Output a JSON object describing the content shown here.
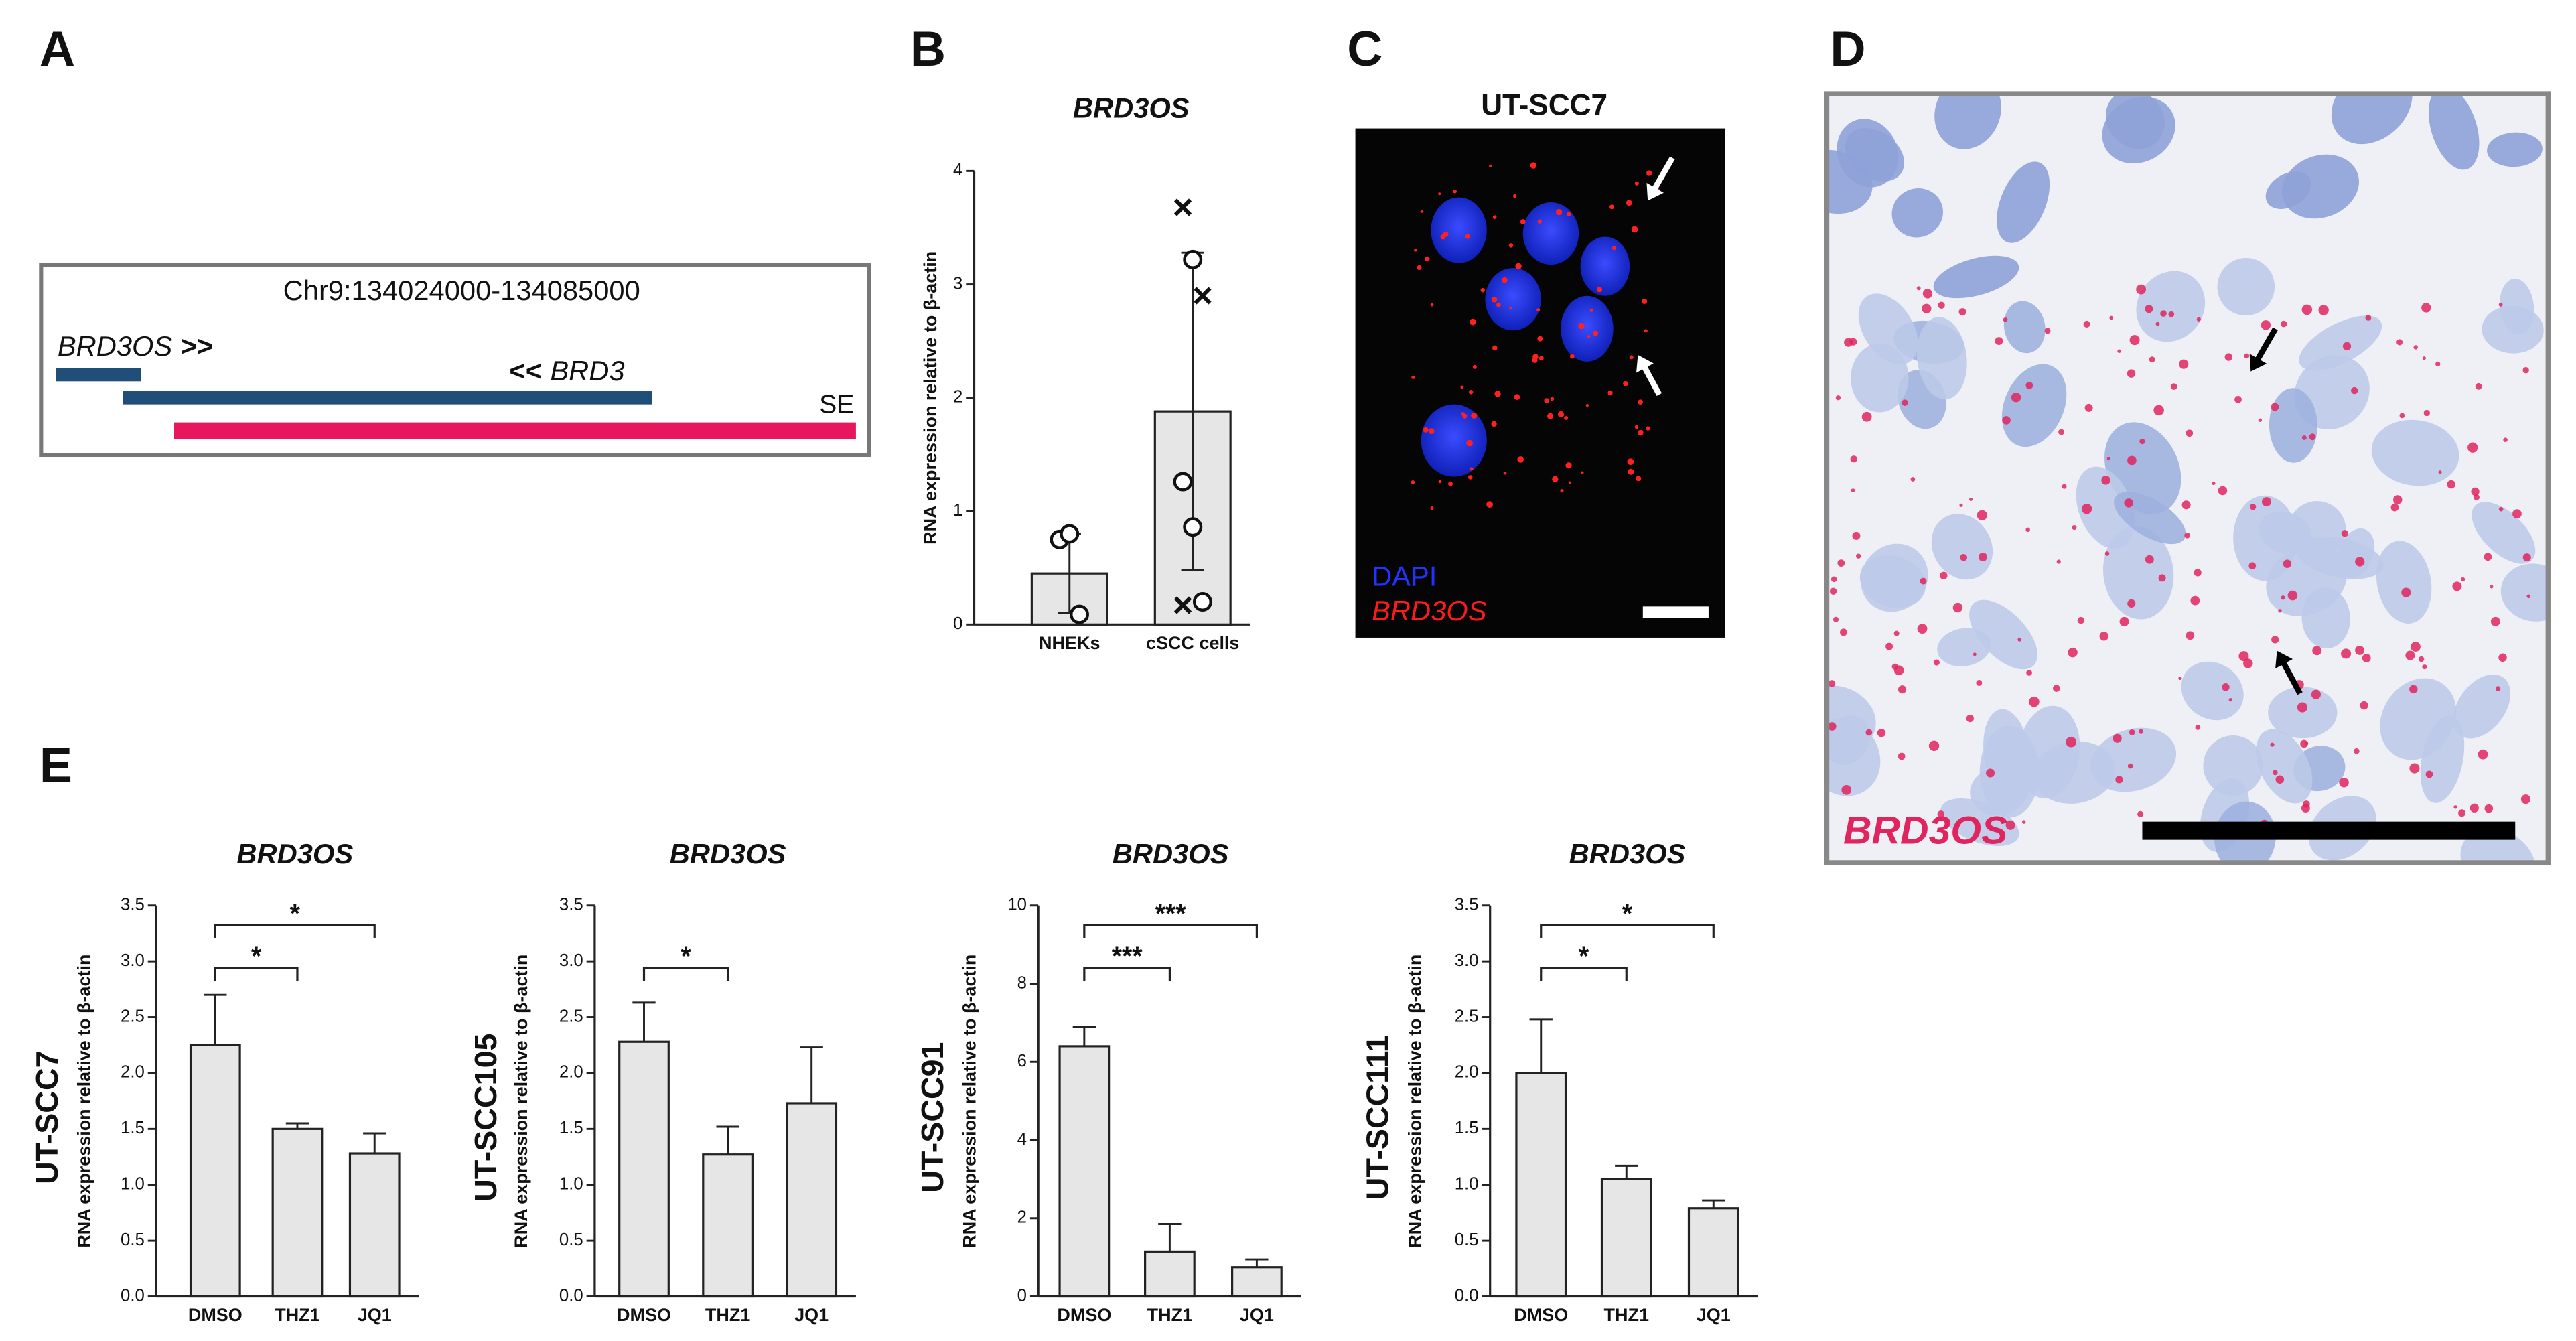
{
  "panel_labels": [
    "A",
    "B",
    "C",
    "D",
    "E"
  ],
  "panel_a": {
    "region": "Chr9:134024000-134085000",
    "genes": [
      {
        "name": "BRD3OS",
        "arrow": ">>"
      },
      {
        "name": "BRD3",
        "arrow": "<<"
      }
    ],
    "super_enhancer": "SE"
  },
  "panel_c": {
    "title": "UT-SCC7",
    "legend": [
      "DAPI",
      "BRD3OS"
    ]
  },
  "panel_d": {
    "label": "BRD3OS"
  },
  "chart_data": [
    {
      "type": "bar",
      "title": "BRD3OS",
      "ylabel": "RNA expression relative to β-actin",
      "categories": [
        "NHEKs",
        "cSCC cells"
      ],
      "values": [
        0.45,
        1.88
      ],
      "errors": [
        0.35,
        1.4
      ],
      "error_direction": "both",
      "color": "#e6e6e6",
      "points": [
        [
          0.75,
          0.8,
          0.09
        ],
        [
          3.68,
          3.22,
          2.9,
          1.26,
          0.86,
          0.2,
          0.17
        ]
      ],
      "point_markers": [
        [
          "o",
          "o",
          "o"
        ],
        [
          "x",
          "o",
          "x",
          "o",
          "o",
          "o",
          "x"
        ]
      ],
      "ylim": [
        0,
        4
      ],
      "yticks": [
        0,
        1,
        2,
        3,
        4
      ]
    },
    {
      "type": "bar",
      "title": "BRD3OS",
      "ylabel": "RNA expression relative to β-actin",
      "cell_line": "UT-SCC7",
      "categories": [
        "DMSO",
        "THZ1",
        "JQ1"
      ],
      "values": [
        2.25,
        1.5,
        1.28
      ],
      "errors": [
        0.45,
        0.05,
        0.18
      ],
      "error_direction": "up",
      "color": "#e6e6e6",
      "annotations": [
        {
          "between": [
            "DMSO",
            "THZ1"
          ],
          "label": "*"
        },
        {
          "between": [
            "DMSO",
            "JQ1"
          ],
          "label": "*"
        }
      ],
      "ylim": [
        0,
        3.5
      ],
      "yticks": [
        {
          "value": 0,
          "label": "0.0"
        },
        0.5,
        {
          "value": 1,
          "label": "1.0"
        },
        1.5,
        {
          "value": 2,
          "label": "2.0"
        },
        2.5,
        {
          "value": 3,
          "label": "3.0"
        },
        3.5
      ]
    },
    {
      "type": "bar",
      "title": "BRD3OS",
      "ylabel": "RNA expression relative to β-actin",
      "cell_line": "UT-SCC105",
      "categories": [
        "DMSO",
        "THZ1",
        "JQ1"
      ],
      "values": [
        2.28,
        1.27,
        1.73
      ],
      "errors": [
        0.35,
        0.25,
        0.5
      ],
      "error_direction": "up",
      "color": "#e6e6e6",
      "annotations": [
        {
          "between": [
            "DMSO",
            "THZ1"
          ],
          "label": "*"
        }
      ],
      "ylim": [
        0,
        3.5
      ],
      "yticks": [
        {
          "value": 0,
          "label": "0.0"
        },
        0.5,
        {
          "value": 1,
          "label": "1.0"
        },
        1.5,
        {
          "value": 2,
          "label": "2.0"
        },
        2.5,
        {
          "value": 3,
          "label": "3.0"
        },
        3.5
      ]
    },
    {
      "type": "bar",
      "title": "BRD3OS",
      "ylabel": "RNA expression relative to β-actin",
      "cell_line": "UT-SCC91",
      "categories": [
        "DMSO",
        "THZ1",
        "JQ1"
      ],
      "values": [
        6.4,
        1.15,
        0.75
      ],
      "errors": [
        0.5,
        0.7,
        0.2
      ],
      "error_direction": "up",
      "color": "#e6e6e6",
      "annotations": [
        {
          "between": [
            "DMSO",
            "THZ1"
          ],
          "label": "***"
        },
        {
          "between": [
            "DMSO",
            "JQ1"
          ],
          "label": "***"
        }
      ],
      "ylim": [
        0,
        10
      ],
      "yticks": [
        0,
        2,
        4,
        6,
        8,
        10
      ]
    },
    {
      "type": "bar",
      "title": "BRD3OS",
      "ylabel": "RNA expression relative to β-actin",
      "cell_line": "UT-SCC111",
      "categories": [
        "DMSO",
        "THZ1",
        "JQ1"
      ],
      "values": [
        2.0,
        1.05,
        0.79
      ],
      "errors": [
        0.48,
        0.12,
        0.07
      ],
      "error_direction": "up",
      "color": "#e6e6e6",
      "annotations": [
        {
          "between": [
            "DMSO",
            "THZ1"
          ],
          "label": "*"
        },
        {
          "between": [
            "DMSO",
            "JQ1"
          ],
          "label": "*"
        }
      ],
      "ylim": [
        0,
        3.5
      ],
      "yticks": [
        {
          "value": 0,
          "label": "0.0"
        },
        0.5,
        {
          "value": 1,
          "label": "1.0"
        },
        1.5,
        {
          "value": 2,
          "label": "2.0"
        },
        2.5,
        {
          "value": 3,
          "label": "3.0"
        },
        3.5
      ]
    }
  ]
}
